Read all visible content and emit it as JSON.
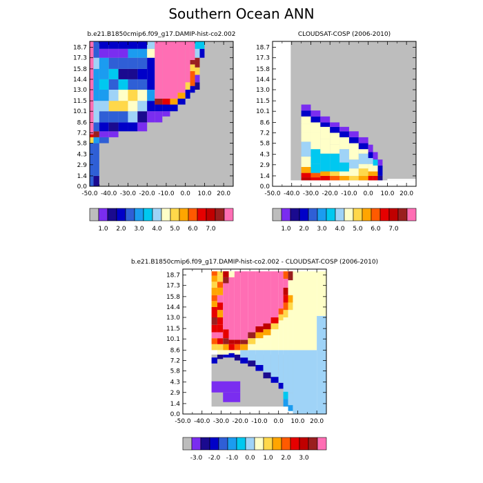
{
  "figure": {
    "title": "Southern Ocean ANN"
  },
  "chart_data": [
    {
      "type": "heatmap",
      "title": "b.e21.B1850cmip6.f09_g17.DAMIP-hist-co2.002",
      "x_ticks": [
        "-50.0",
        "-40.0",
        "-30.0",
        "-20.0",
        "-10.0",
        "0.0",
        "10.0",
        "20.0"
      ],
      "y_ticks": [
        "0.0",
        "1.4",
        "2.9",
        "4.3",
        "5.8",
        "7.2",
        "8.6",
        "10.1",
        "11.5",
        "13.0",
        "14.4",
        "15.8",
        "17.3",
        "18.7"
      ],
      "xlim": [
        -50,
        25
      ],
      "ylim": [
        0,
        19.5
      ],
      "colorbar_ticks": [
        "1.0",
        "2.0",
        "3.0",
        "4.0",
        "5.0",
        "6.0",
        "7.0"
      ],
      "colorbar_colors": [
        "#bdbdbd",
        "#7a2df0",
        "#1a0a8f",
        "#0000c8",
        "#2f5fd6",
        "#1b9cf0",
        "#00c8f0",
        "#9fd3f7",
        "#ffffc8",
        "#ffd84a",
        "#ffa500",
        "#ff5a00",
        "#e60000",
        "#c00000",
        "#9a1f1f",
        "#ff6eb4"
      ],
      "series": [
        {
          "mean": "left-edge",
          "cells": [
            {
              "x": -48,
              "y": 0.5,
              "v": 3
            },
            {
              "x": -48,
              "y": 1.5,
              "v": 3
            },
            {
              "x": -48,
              "y": 2.5,
              "v": 3
            },
            {
              "x": -48,
              "y": 3.5,
              "v": 4
            },
            {
              "x": -48,
              "y": 4.5,
              "v": 4
            },
            {
              "x": -48,
              "y": 5.5,
              "v": 6
            },
            {
              "x": -48,
              "y": 6.5,
              "v": 8
            },
            {
              "x": -48,
              "y": 7.0,
              "v": 13
            },
            {
              "x": -48,
              "y": 8.0,
              "v": 15
            },
            {
              "x": -48,
              "y": 9.5,
              "v": 15
            },
            {
              "x": -48,
              "y": 11.5,
              "v": 15
            },
            {
              "x": -48,
              "y": 13.5,
              "v": 15
            },
            {
              "x": -48,
              "y": 15.5,
              "v": 15
            },
            {
              "x": -48,
              "y": 17.5,
              "v": 15
            }
          ]
        }
      ]
    },
    {
      "type": "heatmap",
      "title": "CLOUDSAT-COSP (2006-2010)",
      "x_ticks": [
        "-50.0",
        "-40.0",
        "-30.0",
        "-20.0",
        "-10.0",
        "0.0",
        "10.0",
        "20.0"
      ],
      "y_ticks": [
        "0.0",
        "1.4",
        "2.9",
        "4.3",
        "5.8",
        "7.2",
        "8.6",
        "10.1",
        "11.5",
        "13.0",
        "14.4",
        "15.8",
        "17.3",
        "18.7"
      ],
      "xlim": [
        -50,
        25
      ],
      "ylim": [
        0,
        19.5
      ],
      "colorbar_ticks": [
        "1.0",
        "2.0",
        "3.0",
        "4.0",
        "5.0",
        "6.0",
        "7.0"
      ]
    },
    {
      "type": "heatmap",
      "title": "b.e21.B1850cmip6.f09_g17.DAMIP-hist-co2.002 - CLOUDSAT-COSP (2006-2010)",
      "x_ticks": [
        "-50.0",
        "-40.0",
        "-30.0",
        "-20.0",
        "-10.0",
        "0.0",
        "10.0",
        "20.0"
      ],
      "y_ticks": [
        "0.0",
        "1.4",
        "2.9",
        "4.3",
        "5.8",
        "7.2",
        "8.6",
        "10.1",
        "11.5",
        "13.0",
        "14.4",
        "15.8",
        "17.3",
        "18.7"
      ],
      "xlim": [
        -50,
        25
      ],
      "ylim": [
        0,
        19.5
      ],
      "colorbar_ticks": [
        "-3.0",
        "-2.0",
        "-1.0",
        "0.0",
        "1.0",
        "2.0",
        "3.0"
      ],
      "colorbar_colors": [
        "#bdbdbd",
        "#7a2df0",
        "#1a0a8f",
        "#0000c8",
        "#2f5fd6",
        "#1b9cf0",
        "#00c8f0",
        "#9fd3f7",
        "#ffffc8",
        "#ffd84a",
        "#ffa500",
        "#ff5a00",
        "#e60000",
        "#c00000",
        "#9a1f1f",
        "#ff6eb4"
      ]
    }
  ]
}
